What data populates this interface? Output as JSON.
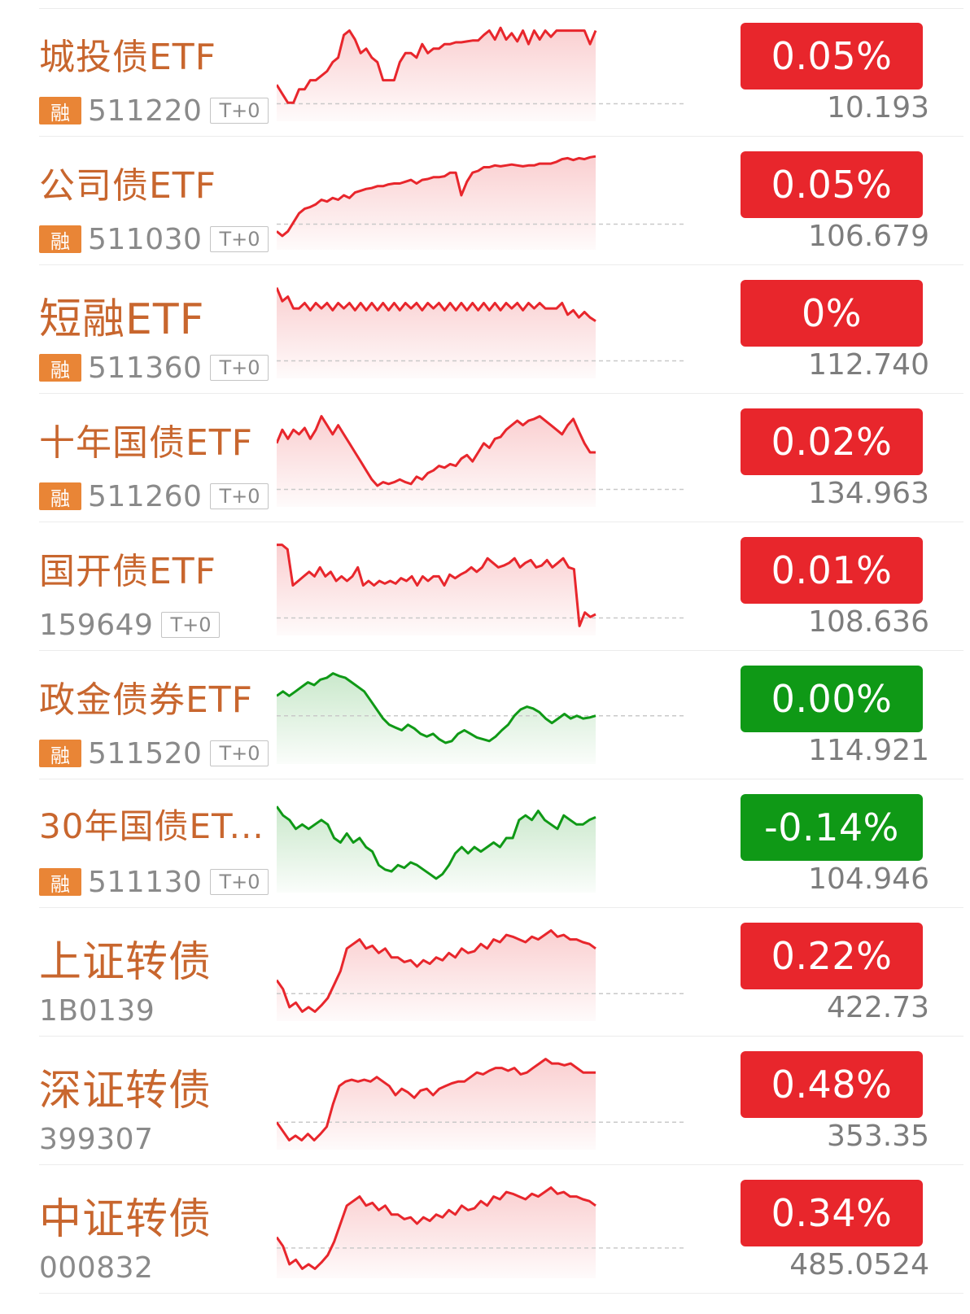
{
  "colors": {
    "up": "#e8262c",
    "down": "#0f9916",
    "name": "#c8662e",
    "rong_badge": "#e98536"
  },
  "items": [
    {
      "name": "城投债ETF",
      "has_rong": true,
      "rong_label": "融",
      "code": "511220",
      "t0": "T+0",
      "change": "0.05%",
      "price": "10.193",
      "trend": "up",
      "baseline": 0.86,
      "spark": [
        0.65,
        0.75,
        0.85,
        0.85,
        0.7,
        0.7,
        0.6,
        0.6,
        0.55,
        0.5,
        0.4,
        0.35,
        0.1,
        0.05,
        0.15,
        0.3,
        0.25,
        0.35,
        0.4,
        0.6,
        0.6,
        0.6,
        0.4,
        0.3,
        0.3,
        0.35,
        0.2,
        0.3,
        0.25,
        0.25,
        0.2,
        0.2,
        0.18,
        0.18,
        0.17,
        0.16,
        0.16,
        0.1,
        0.05,
        0.15,
        0.02,
        0.15,
        0.08,
        0.17,
        0.05,
        0.2,
        0.05,
        0.15,
        0.05,
        0.12,
        0.05,
        0.05,
        0.05,
        0.05,
        0.05,
        0.05,
        0.2,
        0.05
      ]
    },
    {
      "name": "公司债ETF",
      "has_rong": true,
      "rong_label": "融",
      "code": "511030",
      "t0": "T+0",
      "change": "0.05%",
      "price": "106.679",
      "trend": "up",
      "baseline": 0.77,
      "spark": [
        0.85,
        0.9,
        0.85,
        0.75,
        0.65,
        0.6,
        0.58,
        0.55,
        0.5,
        0.52,
        0.48,
        0.5,
        0.45,
        0.48,
        0.42,
        0.4,
        0.38,
        0.37,
        0.35,
        0.35,
        0.33,
        0.32,
        0.32,
        0.3,
        0.28,
        0.32,
        0.28,
        0.27,
        0.25,
        0.25,
        0.24,
        0.2,
        0.2,
        0.45,
        0.3,
        0.2,
        0.18,
        0.14,
        0.14,
        0.12,
        0.13,
        0.12,
        0.11,
        0.12,
        0.13,
        0.12,
        0.12,
        0.1,
        0.1,
        0.1,
        0.08,
        0.05,
        0.04,
        0.06,
        0.04,
        0.05,
        0.03,
        0.02
      ]
    },
    {
      "name": "短融ETF",
      "has_rong": true,
      "rong_label": "融",
      "code": "511360",
      "t0": "T+0",
      "change": "0%",
      "price": "112.740",
      "trend": "up",
      "baseline": 0.86,
      "spark": [
        0.05,
        0.2,
        0.15,
        0.28,
        0.28,
        0.22,
        0.3,
        0.22,
        0.28,
        0.22,
        0.3,
        0.22,
        0.28,
        0.22,
        0.3,
        0.22,
        0.3,
        0.22,
        0.3,
        0.22,
        0.3,
        0.22,
        0.3,
        0.22,
        0.28,
        0.22,
        0.3,
        0.22,
        0.28,
        0.22,
        0.3,
        0.22,
        0.3,
        0.22,
        0.3,
        0.22,
        0.3,
        0.22,
        0.3,
        0.22,
        0.3,
        0.22,
        0.28,
        0.22,
        0.3,
        0.22,
        0.28,
        0.22,
        0.28,
        0.28,
        0.28,
        0.22,
        0.35,
        0.3,
        0.38,
        0.32,
        0.38,
        0.42
      ]
    },
    {
      "name": "十年国债ETF",
      "has_rong": true,
      "rong_label": "融",
      "code": "511260",
      "t0": "T+0",
      "change": "0.02%",
      "price": "134.963",
      "trend": "up",
      "baseline": 0.86,
      "spark": [
        0.35,
        0.2,
        0.3,
        0.2,
        0.25,
        0.18,
        0.3,
        0.2,
        0.05,
        0.15,
        0.25,
        0.15,
        0.25,
        0.35,
        0.45,
        0.55,
        0.65,
        0.75,
        0.82,
        0.78,
        0.8,
        0.78,
        0.75,
        0.78,
        0.8,
        0.72,
        0.75,
        0.68,
        0.65,
        0.6,
        0.62,
        0.58,
        0.6,
        0.52,
        0.48,
        0.55,
        0.45,
        0.35,
        0.4,
        0.3,
        0.28,
        0.2,
        0.15,
        0.1,
        0.15,
        0.1,
        0.08,
        0.05,
        0.1,
        0.15,
        0.2,
        0.25,
        0.15,
        0.08,
        0.22,
        0.35,
        0.45,
        0.45
      ]
    },
    {
      "name": "国开债ETF",
      "has_rong": false,
      "rong_label": "",
      "code": "159649",
      "t0": "T+0",
      "change": "0.01%",
      "price": "108.636",
      "trend": "up",
      "baseline": 0.86,
      "spark": [
        0.05,
        0.05,
        0.1,
        0.5,
        0.45,
        0.4,
        0.35,
        0.4,
        0.3,
        0.4,
        0.35,
        0.45,
        0.4,
        0.45,
        0.4,
        0.3,
        0.5,
        0.45,
        0.5,
        0.45,
        0.48,
        0.45,
        0.48,
        0.42,
        0.45,
        0.4,
        0.5,
        0.4,
        0.45,
        0.4,
        0.4,
        0.5,
        0.38,
        0.42,
        0.38,
        0.35,
        0.3,
        0.35,
        0.3,
        0.2,
        0.25,
        0.3,
        0.28,
        0.25,
        0.2,
        0.3,
        0.25,
        0.22,
        0.3,
        0.28,
        0.22,
        0.3,
        0.25,
        0.2,
        0.3,
        0.32,
        0.95,
        0.8,
        0.85,
        0.82
      ]
    },
    {
      "name": "政金债券ETF",
      "has_rong": true,
      "rong_label": "融",
      "code": "511520",
      "t0": "T+0",
      "change": "0.00%",
      "price": "114.921",
      "trend": "down",
      "baseline": 0.52,
      "spark": [
        0.3,
        0.25,
        0.3,
        0.25,
        0.2,
        0.15,
        0.18,
        0.12,
        0.1,
        0.05,
        0.08,
        0.1,
        0.15,
        0.2,
        0.25,
        0.35,
        0.45,
        0.55,
        0.62,
        0.65,
        0.68,
        0.62,
        0.66,
        0.72,
        0.75,
        0.72,
        0.78,
        0.82,
        0.8,
        0.72,
        0.68,
        0.72,
        0.76,
        0.78,
        0.8,
        0.75,
        0.68,
        0.62,
        0.52,
        0.45,
        0.42,
        0.44,
        0.48,
        0.55,
        0.6,
        0.55,
        0.5,
        0.55,
        0.52,
        0.55,
        0.54,
        0.52
      ]
    },
    {
      "name": "30年国债ET...",
      "has_rong": true,
      "rong_label": "融",
      "code": "511130",
      "t0": "T+0",
      "change": "-0.14%",
      "price": "104.946",
      "trend": "down",
      "baseline": -0.05,
      "spark": [
        0.1,
        0.2,
        0.25,
        0.35,
        0.3,
        0.35,
        0.3,
        0.25,
        0.3,
        0.45,
        0.5,
        0.4,
        0.5,
        0.45,
        0.55,
        0.6,
        0.75,
        0.8,
        0.82,
        0.75,
        0.78,
        0.72,
        0.75,
        0.8,
        0.85,
        0.9,
        0.85,
        0.75,
        0.62,
        0.55,
        0.62,
        0.55,
        0.6,
        0.55,
        0.5,
        0.55,
        0.45,
        0.45,
        0.25,
        0.2,
        0.25,
        0.15,
        0.25,
        0.3,
        0.35,
        0.2,
        0.25,
        0.3,
        0.3,
        0.25,
        0.22
      ]
    },
    {
      "name": "上证转债",
      "has_rong": false,
      "rong_label": "",
      "code": "1B0139",
      "t0": "",
      "change": "0.22%",
      "price": "422.73",
      "trend": "up",
      "baseline": 0.75,
      "spark": [
        0.6,
        0.7,
        0.9,
        0.85,
        0.95,
        0.9,
        0.95,
        0.88,
        0.8,
        0.65,
        0.5,
        0.25,
        0.2,
        0.15,
        0.25,
        0.22,
        0.3,
        0.25,
        0.35,
        0.35,
        0.4,
        0.38,
        0.45,
        0.38,
        0.42,
        0.35,
        0.38,
        0.3,
        0.35,
        0.25,
        0.3,
        0.28,
        0.2,
        0.25,
        0.15,
        0.18,
        0.1,
        0.12,
        0.15,
        0.18,
        0.12,
        0.15,
        0.1,
        0.05,
        0.12,
        0.1,
        0.15,
        0.15,
        0.18,
        0.2,
        0.25
      ]
    },
    {
      "name": "深证转债",
      "has_rong": false,
      "rong_label": "",
      "code": "399307",
      "t0": "",
      "change": "0.48%",
      "price": "353.35",
      "trend": "up",
      "baseline": 0.75,
      "spark": [
        0.75,
        0.85,
        0.95,
        0.9,
        0.95,
        0.88,
        0.95,
        0.88,
        0.8,
        0.55,
        0.35,
        0.3,
        0.28,
        0.3,
        0.28,
        0.3,
        0.25,
        0.3,
        0.35,
        0.45,
        0.38,
        0.42,
        0.48,
        0.4,
        0.38,
        0.45,
        0.38,
        0.35,
        0.32,
        0.3,
        0.3,
        0.25,
        0.2,
        0.22,
        0.18,
        0.15,
        0.15,
        0.18,
        0.15,
        0.22,
        0.2,
        0.15,
        0.1,
        0.05,
        0.1,
        0.1,
        0.12,
        0.1,
        0.15,
        0.2,
        0.2,
        0.2
      ]
    },
    {
      "name": "中证转债",
      "has_rong": false,
      "rong_label": "",
      "code": "000832",
      "t0": "",
      "change": "0.34%",
      "price": "485.0524",
      "trend": "up",
      "baseline": 0.72,
      "spark": [
        0.6,
        0.7,
        0.9,
        0.85,
        0.95,
        0.9,
        0.95,
        0.88,
        0.8,
        0.65,
        0.45,
        0.25,
        0.2,
        0.15,
        0.25,
        0.22,
        0.3,
        0.25,
        0.35,
        0.35,
        0.4,
        0.38,
        0.45,
        0.38,
        0.42,
        0.35,
        0.38,
        0.3,
        0.35,
        0.25,
        0.3,
        0.28,
        0.2,
        0.25,
        0.15,
        0.18,
        0.1,
        0.12,
        0.15,
        0.18,
        0.12,
        0.15,
        0.1,
        0.05,
        0.12,
        0.1,
        0.15,
        0.15,
        0.18,
        0.2,
        0.25
      ]
    }
  ]
}
